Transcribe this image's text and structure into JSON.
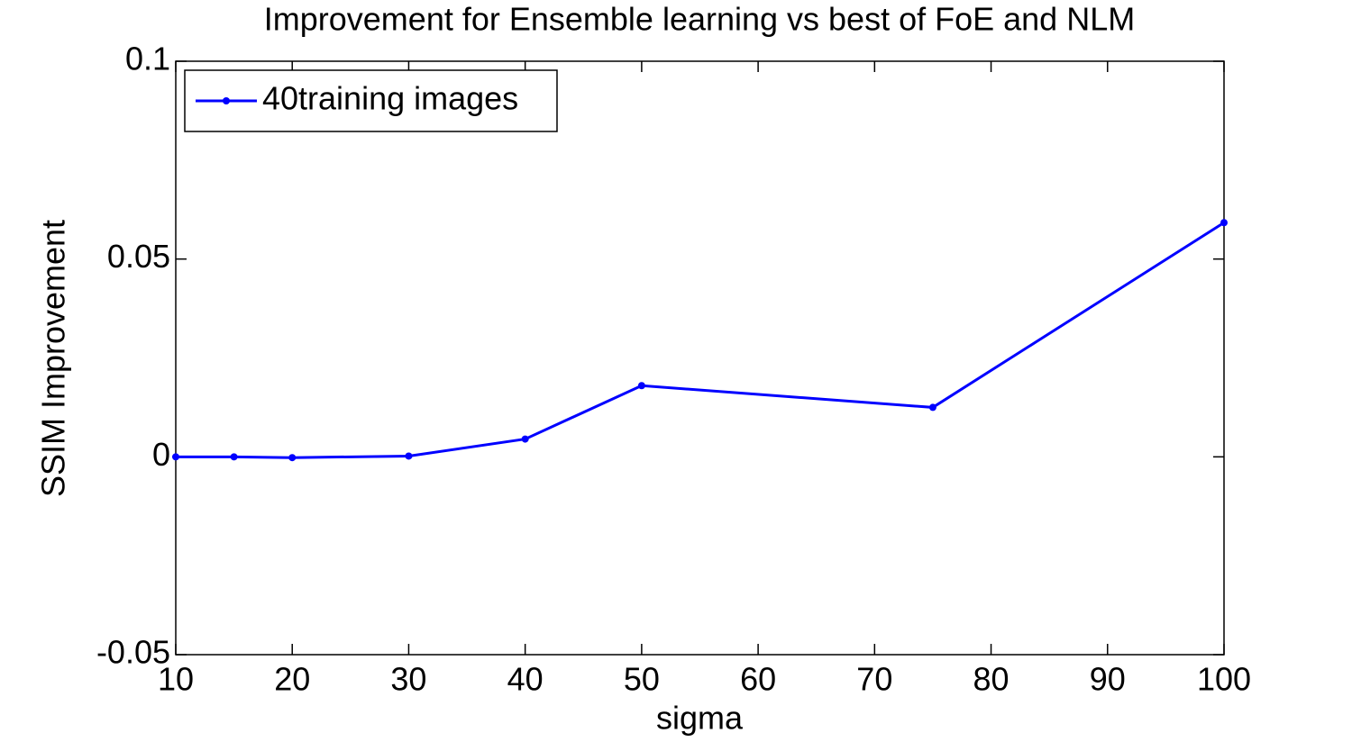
{
  "chart_data": {
    "type": "line",
    "title": "Improvement for Ensemble learning vs best of FoE and NLM",
    "xlabel": "sigma",
    "ylabel": "SSIM Improvement",
    "x": [
      10,
      15,
      20,
      30,
      40,
      50,
      75,
      100
    ],
    "series": [
      {
        "name": "40training images",
        "color": "#0000ff",
        "values": [
          0,
          0,
          -0.0002,
          0.0002,
          0.0045,
          0.018,
          0.0125,
          0.0592
        ]
      }
    ],
    "xlim": [
      10,
      100
    ],
    "xticks": [
      10,
      20,
      30,
      40,
      50,
      60,
      70,
      80,
      90,
      100
    ],
    "ylim": [
      -0.05,
      0.1
    ],
    "yticks": [
      -0.05,
      0,
      0.05,
      0.1
    ],
    "grid": false,
    "legend": "upper left"
  }
}
